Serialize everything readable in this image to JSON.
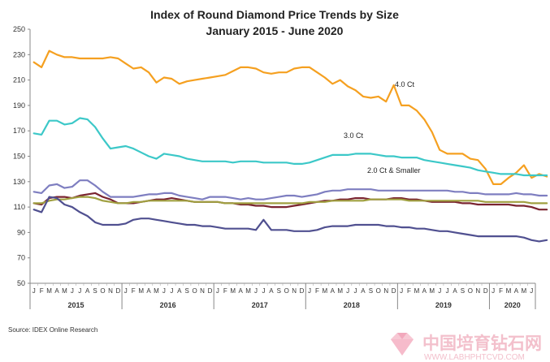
{
  "chart_data": {
    "type": "line",
    "title": "Index of Round Diamond Price Trends by Size",
    "subtitle": "January 2015 - June 2020",
    "ylim": [
      50,
      250
    ],
    "yticks": [
      50,
      70,
      90,
      110,
      130,
      150,
      170,
      190,
      210,
      230,
      250
    ],
    "month_letters": [
      "J",
      "F",
      "M",
      "A",
      "M",
      "J",
      "J",
      "A",
      "S",
      "O",
      "N",
      "D",
      "J",
      "F",
      "M",
      "A",
      "M",
      "J",
      "J",
      "A",
      "S",
      "O",
      "N",
      "D",
      "J",
      "F",
      "M",
      "A",
      "M",
      "J",
      "J",
      "A",
      "S",
      "O",
      "N",
      "D",
      "J",
      "F",
      "M",
      "A",
      "M",
      "J",
      "J",
      "A",
      "S",
      "O",
      "N",
      "D",
      "J",
      "F",
      "M",
      "A",
      "M",
      "J",
      "J",
      "A",
      "S",
      "O",
      "N",
      "D",
      "J",
      "F",
      "M",
      "A",
      "M",
      "J"
    ],
    "years": [
      "2015",
      "2016",
      "2017",
      "2018",
      "2019",
      "2020"
    ],
    "annotations": {
      "s4": "4.0 Ct",
      "s3": "3.0 Ct",
      "s2": "2.0 Ct & Smaller"
    },
    "source": "Source:  IDEX Online  Research",
    "series": [
      {
        "name": "4.0 Ct",
        "color": "#f5a020",
        "values": [
          224,
          220,
          233,
          230,
          228,
          228,
          227,
          227,
          227,
          227,
          228,
          227,
          223,
          219,
          220,
          216,
          208,
          212,
          211,
          207,
          209,
          210,
          211,
          212,
          213,
          214,
          217,
          220,
          220,
          219,
          216,
          215,
          216,
          216,
          219,
          220,
          220,
          216,
          212,
          207,
          210,
          205,
          202,
          197,
          196,
          197,
          193,
          206,
          190,
          190,
          186,
          179,
          169,
          155,
          152,
          152,
          152,
          148,
          147,
          140,
          128,
          128,
          133,
          137,
          143,
          133,
          136,
          134
        ]
      },
      {
        "name": "3.0 Ct",
        "color": "#3cc8c8",
        "values": [
          168,
          167,
          178,
          178,
          175,
          176,
          180,
          179,
          173,
          164,
          156,
          157,
          158,
          156,
          153,
          150,
          148,
          152,
          151,
          150,
          148,
          147,
          146,
          146,
          146,
          146,
          145,
          146,
          146,
          146,
          145,
          145,
          145,
          145,
          144,
          144,
          145,
          147,
          149,
          151,
          151,
          151,
          152,
          152,
          152,
          151,
          150,
          150,
          149,
          149,
          149,
          147,
          146,
          145,
          144,
          143,
          142,
          141,
          139,
          138,
          137,
          136,
          136,
          136,
          135,
          135,
          135,
          135
        ]
      },
      {
        "name": "",
        "color": "#7e7ec0",
        "values": [
          122,
          121,
          127,
          128,
          125,
          126,
          131,
          131,
          127,
          122,
          118,
          118,
          118,
          118,
          119,
          120,
          120,
          121,
          121,
          119,
          118,
          117,
          116,
          118,
          118,
          118,
          117,
          116,
          117,
          116,
          116,
          117,
          118,
          119,
          119,
          118,
          119,
          120,
          122,
          123,
          123,
          124,
          124,
          124,
          124,
          123,
          123,
          123,
          123,
          123,
          123,
          123,
          123,
          123,
          123,
          122,
          122,
          121,
          121,
          120,
          120,
          120,
          120,
          121,
          120,
          120,
          119,
          119
        ]
      },
      {
        "name": "",
        "color": "#7a2430",
        "values": [
          113,
          112,
          117,
          118,
          118,
          117,
          119,
          120,
          121,
          118,
          116,
          113,
          113,
          113,
          114,
          115,
          116,
          116,
          117,
          116,
          115,
          114,
          114,
          114,
          114,
          113,
          113,
          112,
          112,
          111,
          111,
          110,
          110,
          110,
          111,
          112,
          113,
          114,
          115,
          115,
          116,
          116,
          117,
          117,
          116,
          116,
          116,
          117,
          117,
          116,
          116,
          115,
          114,
          114,
          114,
          114,
          113,
          113,
          112,
          112,
          112,
          112,
          112,
          111,
          111,
          110,
          108,
          108
        ]
      },
      {
        "name": "2.0 Ct & Smaller",
        "color": "#a0a040",
        "values": [
          113,
          113,
          115,
          116,
          116,
          117,
          118,
          118,
          117,
          115,
          114,
          113,
          113,
          114,
          114,
          115,
          115,
          115,
          115,
          115,
          115,
          114,
          114,
          114,
          114,
          113,
          113,
          113,
          113,
          113,
          113,
          113,
          113,
          113,
          113,
          113,
          114,
          114,
          114,
          115,
          115,
          115,
          115,
          115,
          116,
          116,
          116,
          116,
          116,
          115,
          115,
          115,
          115,
          115,
          115,
          115,
          115,
          115,
          115,
          114,
          114,
          114,
          114,
          114,
          114,
          113,
          113,
          113
        ]
      },
      {
        "name": "",
        "color": "#505090",
        "values": [
          108,
          106,
          118,
          117,
          112,
          110,
          106,
          103,
          98,
          96,
          96,
          96,
          97,
          100,
          101,
          101,
          100,
          99,
          98,
          97,
          96,
          96,
          95,
          95,
          94,
          93,
          93,
          93,
          93,
          92,
          100,
          92,
          92,
          92,
          91,
          91,
          91,
          92,
          94,
          95,
          95,
          95,
          96,
          96,
          96,
          96,
          95,
          95,
          94,
          94,
          93,
          93,
          92,
          91,
          91,
          90,
          89,
          88,
          87,
          87,
          87,
          87,
          87,
          87,
          86,
          84,
          83,
          84
        ]
      }
    ]
  },
  "watermark": {
    "cn": "中国培育钻石网",
    "url": "WWW.LABHPHTCVD.COM"
  }
}
